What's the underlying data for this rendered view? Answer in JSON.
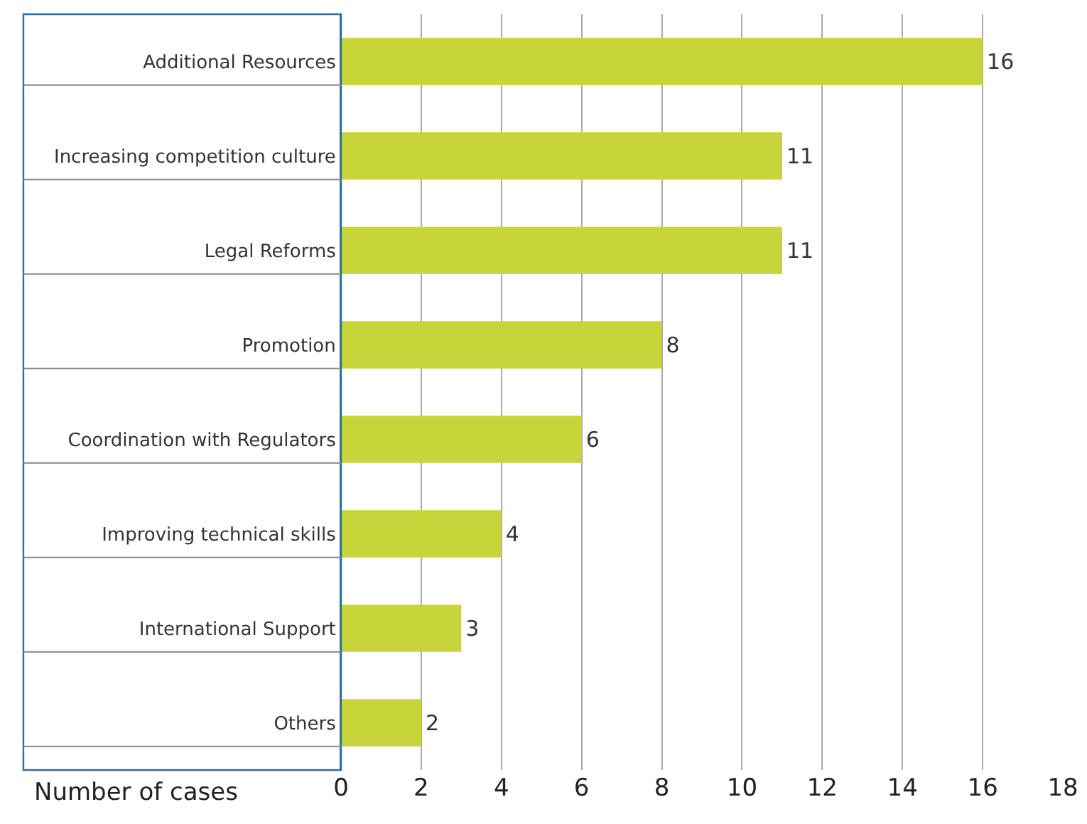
{
  "chart_data": {
    "type": "bar",
    "orientation": "horizontal",
    "xlabel": "Number of cases",
    "categories": [
      "Additional Resources",
      "Increasing competition culture",
      "Legal Reforms",
      "Promotion",
      "Coordination with Regulators",
      "Improving technical skills",
      "International Support",
      "Others"
    ],
    "values": [
      16,
      11,
      11,
      8,
      6,
      4,
      3,
      2
    ],
    "color": "#c8d53a",
    "xlim": [
      0,
      18
    ],
    "xticks": [
      0,
      2,
      4,
      6,
      8,
      10,
      12,
      14,
      16,
      18
    ],
    "grid": "x",
    "data_labels": true
  }
}
